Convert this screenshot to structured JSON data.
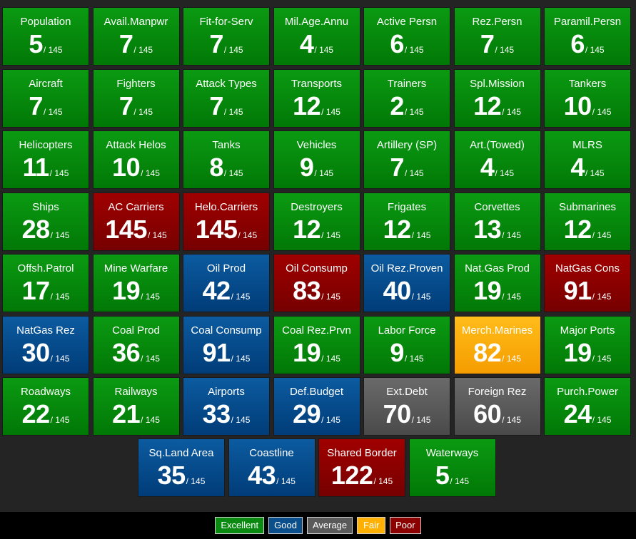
{
  "colors": {
    "excellent": "#017806",
    "good": "#003c78",
    "average": "#4a4a4a",
    "fair": "#f59c00",
    "poor": "#760000",
    "background": "#242424"
  },
  "total_suffix": "/ 145",
  "rows": [
    [
      {
        "label": "Population",
        "value": "5",
        "rating": "excellent"
      },
      {
        "label": "Avail.Manpwr",
        "value": "7",
        "rating": "excellent"
      },
      {
        "label": "Fit-for-Serv",
        "value": "7",
        "rating": "excellent"
      },
      {
        "label": "Mil.Age.Annu",
        "value": "4",
        "rating": "excellent"
      },
      {
        "label": "Active Persn",
        "value": "6",
        "rating": "excellent"
      },
      {
        "label": "Rez.Persn",
        "value": "7",
        "rating": "excellent"
      },
      {
        "label": "Paramil.Persn",
        "value": "6",
        "rating": "excellent"
      }
    ],
    [
      {
        "label": "Aircraft",
        "value": "7",
        "rating": "excellent"
      },
      {
        "label": "Fighters",
        "value": "7",
        "rating": "excellent"
      },
      {
        "label": "Attack Types",
        "value": "7",
        "rating": "excellent"
      },
      {
        "label": "Transports",
        "value": "12",
        "rating": "excellent"
      },
      {
        "label": "Trainers",
        "value": "2",
        "rating": "excellent"
      },
      {
        "label": "Spl.Mission",
        "value": "12",
        "rating": "excellent"
      },
      {
        "label": "Tankers",
        "value": "10",
        "rating": "excellent"
      }
    ],
    [
      {
        "label": "Helicopters",
        "value": "11",
        "rating": "excellent"
      },
      {
        "label": "Attack Helos",
        "value": "10",
        "rating": "excellent"
      },
      {
        "label": "Tanks",
        "value": "8",
        "rating": "excellent"
      },
      {
        "label": "Vehicles",
        "value": "9",
        "rating": "excellent"
      },
      {
        "label": "Artillery (SP)",
        "value": "7",
        "rating": "excellent"
      },
      {
        "label": "Art.(Towed)",
        "value": "4",
        "rating": "excellent"
      },
      {
        "label": "MLRS",
        "value": "4",
        "rating": "excellent"
      }
    ],
    [
      {
        "label": "Ships",
        "value": "28",
        "rating": "excellent"
      },
      {
        "label": "AC Carriers",
        "value": "145",
        "rating": "poor"
      },
      {
        "label": "Helo.Carriers",
        "value": "145",
        "rating": "poor"
      },
      {
        "label": "Destroyers",
        "value": "12",
        "rating": "excellent"
      },
      {
        "label": "Frigates",
        "value": "12",
        "rating": "excellent"
      },
      {
        "label": "Corvettes",
        "value": "13",
        "rating": "excellent"
      },
      {
        "label": "Submarines",
        "value": "12",
        "rating": "excellent"
      }
    ],
    [
      {
        "label": "Offsh.Patrol",
        "value": "17",
        "rating": "excellent"
      },
      {
        "label": "Mine Warfare",
        "value": "19",
        "rating": "excellent"
      },
      {
        "label": "Oil Prod",
        "value": "42",
        "rating": "good"
      },
      {
        "label": "Oil Consump",
        "value": "83",
        "rating": "poor"
      },
      {
        "label": "Oil Rez.Proven",
        "value": "40",
        "rating": "good"
      },
      {
        "label": "Nat.Gas Prod",
        "value": "19",
        "rating": "excellent"
      },
      {
        "label": "NatGas Cons",
        "value": "91",
        "rating": "poor"
      }
    ],
    [
      {
        "label": "NatGas Rez",
        "value": "30",
        "rating": "good"
      },
      {
        "label": "Coal Prod",
        "value": "36",
        "rating": "excellent"
      },
      {
        "label": "Coal Consump",
        "value": "91",
        "rating": "good"
      },
      {
        "label": "Coal Rez.Prvn",
        "value": "19",
        "rating": "excellent"
      },
      {
        "label": "Labor Force",
        "value": "9",
        "rating": "excellent"
      },
      {
        "label": "Merch.Marines",
        "value": "82",
        "rating": "fair"
      },
      {
        "label": "Major Ports",
        "value": "19",
        "rating": "excellent"
      }
    ],
    [
      {
        "label": "Roadways",
        "value": "22",
        "rating": "excellent"
      },
      {
        "label": "Railways",
        "value": "21",
        "rating": "excellent"
      },
      {
        "label": "Airports",
        "value": "33",
        "rating": "good"
      },
      {
        "label": "Def.Budget",
        "value": "29",
        "rating": "good"
      },
      {
        "label": "Ext.Debt",
        "value": "70",
        "rating": "average"
      },
      {
        "label": "Foreign Rez",
        "value": "60",
        "rating": "average"
      },
      {
        "label": "Purch.Power",
        "value": "24",
        "rating": "excellent"
      }
    ]
  ],
  "last_row": [
    {
      "label": "Sq.Land Area",
      "value": "35",
      "rating": "good"
    },
    {
      "label": "Coastline",
      "value": "43",
      "rating": "good"
    },
    {
      "label": "Shared Border",
      "value": "122",
      "rating": "poor"
    },
    {
      "label": "Waterways",
      "value": "5",
      "rating": "excellent"
    }
  ],
  "legend": [
    {
      "label": "Excellent",
      "rating": "excellent"
    },
    {
      "label": "Good",
      "rating": "good"
    },
    {
      "label": "Average",
      "rating": "average"
    },
    {
      "label": "Fair",
      "rating": "fair"
    },
    {
      "label": "Poor",
      "rating": "poor"
    }
  ]
}
